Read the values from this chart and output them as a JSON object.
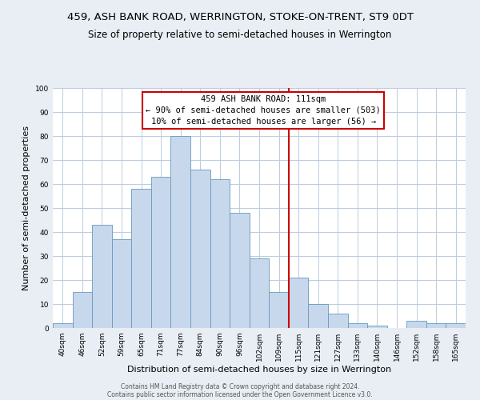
{
  "title": "459, ASH BANK ROAD, WERRINGTON, STOKE-ON-TRENT, ST9 0DT",
  "subtitle": "Size of property relative to semi-detached houses in Werrington",
  "xlabel": "Distribution of semi-detached houses by size in Werrington",
  "ylabel": "Number of semi-detached properties",
  "footer1": "Contains HM Land Registry data © Crown copyright and database right 2024.",
  "footer2": "Contains public sector information licensed under the Open Government Licence v3.0.",
  "categories": [
    "40sqm",
    "46sqm",
    "52sqm",
    "59sqm",
    "65sqm",
    "71sqm",
    "77sqm",
    "84sqm",
    "90sqm",
    "96sqm",
    "102sqm",
    "109sqm",
    "115sqm",
    "121sqm",
    "127sqm",
    "133sqm",
    "140sqm",
    "146sqm",
    "152sqm",
    "158sqm",
    "165sqm"
  ],
  "values": [
    2,
    15,
    43,
    37,
    58,
    63,
    80,
    66,
    62,
    48,
    29,
    15,
    21,
    10,
    6,
    2,
    1,
    0,
    3,
    2,
    2
  ],
  "bar_color": "#c8d8ec",
  "bar_edge_color": "#6699bb",
  "annotation_line_label": "459 ASH BANK ROAD: 111sqm",
  "annotation_smaller": "← 90% of semi-detached houses are smaller (503)",
  "annotation_larger": "10% of semi-detached houses are larger (56) →",
  "annotation_box_color": "#ffffff",
  "annotation_box_edge_color": "#cc0000",
  "vline_color": "#cc0000",
  "ylim": [
    0,
    100
  ],
  "yticks": [
    0,
    10,
    20,
    30,
    40,
    50,
    60,
    70,
    80,
    90,
    100
  ],
  "grid_color": "#bbccdd",
  "bg_color": "#e8eef4",
  "plot_bg_color": "#ffffff",
  "title_fontsize": 9.5,
  "subtitle_fontsize": 8.5,
  "axis_label_fontsize": 8,
  "tick_fontsize": 6.5,
  "annotation_fontsize": 7.5,
  "footer_fontsize": 5.5
}
